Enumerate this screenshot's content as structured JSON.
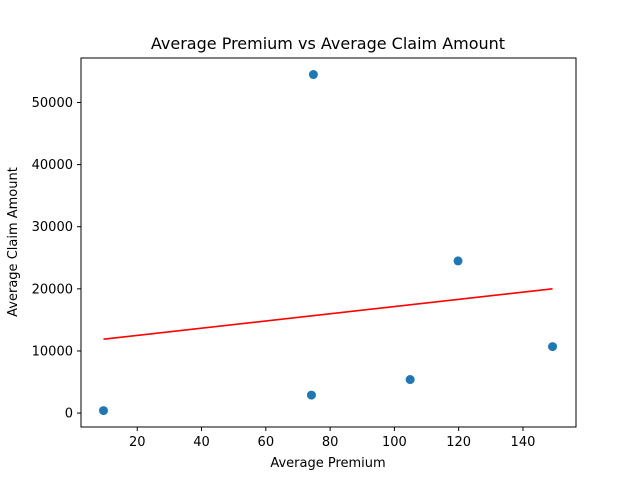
{
  "chart_data": {
    "type": "scatter",
    "title": "Average Premium vs Average Claim Amount",
    "xlabel": "Average Premium",
    "ylabel": "Average Claim Amount",
    "xlim": [
      2.5,
      156.5
    ],
    "ylim": [
      -2240,
      57160
    ],
    "xticks": [
      20,
      40,
      60,
      80,
      100,
      120,
      140
    ],
    "yticks": [
      0,
      10000,
      20000,
      30000,
      40000,
      50000
    ],
    "grid": false,
    "legend": "none",
    "points": [
      {
        "x": 9.5,
        "y": 400
      },
      {
        "x": 74.2,
        "y": 2900
      },
      {
        "x": 74.8,
        "y": 54500
      },
      {
        "x": 104.9,
        "y": 5400
      },
      {
        "x": 119.8,
        "y": 24500
      },
      {
        "x": 149.2,
        "y": 10700
      }
    ],
    "trendline": {
      "x": [
        9.5,
        149.2
      ],
      "y": [
        11900,
        20000
      ]
    },
    "colors": {
      "points": "#1f77b4",
      "trendline": "#ff0000",
      "axes": "#000000"
    }
  }
}
